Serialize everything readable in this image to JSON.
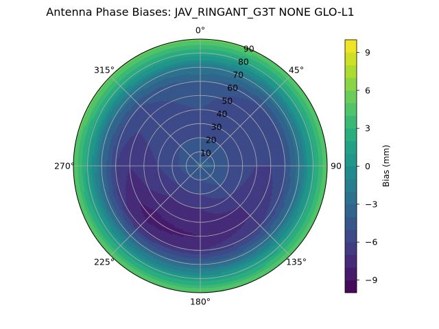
{
  "chart_data": {
    "type": "heatmap",
    "subtype": "polar-contourf",
    "title": "Antenna Phase Biases: JAV_RINGANT_G3T NONE GLO-L1",
    "theta_direction": "clockwise",
    "theta_zero": "top",
    "theta_tick_labels": [
      "0°",
      "45°",
      "90",
      "135°",
      "180°",
      "225°",
      "270°",
      "315°"
    ],
    "r_tick_labels": [
      "10",
      "20",
      "30",
      "40",
      "50",
      "60",
      "70",
      "80",
      "90"
    ],
    "rlim": [
      0,
      90
    ],
    "grid": true,
    "colorbar": {
      "label": "Bias (mm)",
      "colormap": "viridis",
      "range": [
        -10,
        10
      ],
      "levels": 20,
      "tick_labels": [
        "−9",
        "−6",
        "−3",
        "0",
        "3",
        "6",
        "9"
      ]
    },
    "bias_samples": {
      "elevation_deg": [
        0,
        10,
        20,
        30,
        40,
        50,
        60,
        70,
        80,
        90
      ],
      "azimuth_deg": [
        0,
        45,
        90,
        135,
        180,
        225,
        270,
        315
      ],
      "values_mm": [
        [
          -4.0,
          -3.5,
          -3.5,
          -4.0,
          -4.0,
          -4.0,
          -4.0,
          -3.5
        ],
        [
          -4.5,
          -4.5,
          -4.0,
          -4.5,
          -5.0,
          -5.0,
          -4.5,
          -4.5
        ],
        [
          -5.0,
          -5.0,
          -5.0,
          -5.0,
          -6.0,
          -6.0,
          -5.5,
          -5.0
        ],
        [
          -5.0,
          -5.5,
          -5.5,
          -6.0,
          -7.0,
          -7.0,
          -6.0,
          -5.5
        ],
        [
          -5.0,
          -6.0,
          -6.0,
          -7.0,
          -7.5,
          -7.5,
          -6.5,
          -5.5
        ],
        [
          -4.5,
          -6.0,
          -6.0,
          -7.0,
          -8.0,
          -8.5,
          -7.0,
          -5.5
        ],
        [
          -4.0,
          -5.0,
          -5.0,
          -6.0,
          -7.0,
          -7.5,
          -6.0,
          -5.0
        ],
        [
          -2.0,
          -2.5,
          -2.5,
          -3.0,
          -3.5,
          -3.5,
          -3.0,
          -2.5
        ],
        [
          2.0,
          1.5,
          1.5,
          1.5,
          1.0,
          1.0,
          1.5,
          2.0
        ],
        [
          5.5,
          5.0,
          5.0,
          5.0,
          5.0,
          5.0,
          5.0,
          5.5
        ]
      ]
    }
  }
}
